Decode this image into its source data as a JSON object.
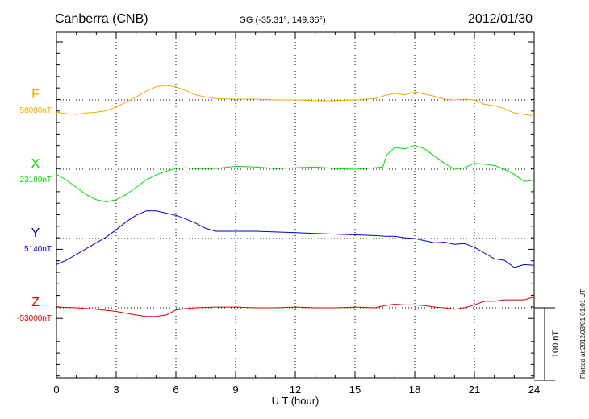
{
  "header": {
    "station": "Canberra (CNB)",
    "coords": "GG (-35.31°, 149.36°)",
    "date": "2012/01/30"
  },
  "footer_note": "Plotted at 2012/03/01 01:01 UT",
  "chart_data": {
    "type": "line",
    "xlabel": "U T (hour)",
    "xlim": [
      0,
      24
    ],
    "xticks": [
      0,
      3,
      6,
      9,
      12,
      15,
      18,
      21,
      24
    ],
    "grid": true,
    "scale_bar": {
      "label": "100 nT",
      "value_nT": 100
    },
    "series": [
      {
        "name": "F",
        "baseline_label": "58080nT",
        "baseline_nT": 58080,
        "color": "#f0a800",
        "points": [
          [
            0,
            58063
          ],
          [
            0.5,
            58061
          ],
          [
            1,
            58060
          ],
          [
            1.5,
            58062
          ],
          [
            2,
            58063
          ],
          [
            2.5,
            58065
          ],
          [
            3,
            58070
          ],
          [
            3.5,
            58077
          ],
          [
            4,
            58084
          ],
          [
            4.5,
            58092
          ],
          [
            5,
            58098
          ],
          [
            5.5,
            58100
          ],
          [
            6,
            58098
          ],
          [
            6.5,
            58093
          ],
          [
            7,
            58087
          ],
          [
            7.5,
            58084
          ],
          [
            8,
            58082
          ],
          [
            9,
            58081
          ],
          [
            10,
            58081
          ],
          [
            11,
            58080
          ],
          [
            12,
            58080
          ],
          [
            13,
            58079
          ],
          [
            14,
            58079
          ],
          [
            15,
            58080
          ],
          [
            16,
            58082
          ],
          [
            16.5,
            58086
          ],
          [
            17,
            58089
          ],
          [
            17.5,
            58087
          ],
          [
            18,
            58091
          ],
          [
            18.5,
            58088
          ],
          [
            19,
            58085
          ],
          [
            19.5,
            58081
          ],
          [
            20,
            58080
          ],
          [
            20.5,
            58081
          ],
          [
            21,
            58080
          ],
          [
            21.5,
            58074
          ],
          [
            22,
            58072
          ],
          [
            22.5,
            58068
          ],
          [
            23,
            58062
          ],
          [
            23.5,
            58060
          ],
          [
            24,
            58058
          ]
        ]
      },
      {
        "name": "X",
        "baseline_label": "23180nT",
        "baseline_nT": 23180,
        "color": "#00dd00",
        "points": [
          [
            0,
            23173
          ],
          [
            0.5,
            23165
          ],
          [
            1,
            23155
          ],
          [
            1.5,
            23145
          ],
          [
            2,
            23138
          ],
          [
            2.5,
            23135
          ],
          [
            3,
            23138
          ],
          [
            3.5,
            23145
          ],
          [
            4,
            23155
          ],
          [
            4.5,
            23165
          ],
          [
            5,
            23172
          ],
          [
            5.5,
            23177
          ],
          [
            6,
            23181
          ],
          [
            6.5,
            23182
          ],
          [
            7,
            23181
          ],
          [
            8,
            23181
          ],
          [
            9,
            23184
          ],
          [
            10,
            23183
          ],
          [
            11,
            23181
          ],
          [
            12,
            23182
          ],
          [
            13,
            23183
          ],
          [
            14,
            23181
          ],
          [
            15,
            23180
          ],
          [
            16,
            23182
          ],
          [
            16.4,
            23183
          ],
          [
            16.6,
            23200
          ],
          [
            17,
            23210
          ],
          [
            17.5,
            23208
          ],
          [
            18,
            23213
          ],
          [
            18.5,
            23208
          ],
          [
            19,
            23198
          ],
          [
            19.5,
            23188
          ],
          [
            20,
            23180
          ],
          [
            20.5,
            23182
          ],
          [
            21,
            23188
          ],
          [
            21.5,
            23187
          ],
          [
            22,
            23185
          ],
          [
            22.5,
            23180
          ],
          [
            23,
            23173
          ],
          [
            23.5,
            23163
          ],
          [
            24,
            23165
          ]
        ]
      },
      {
        "name": "Y",
        "baseline_label": "5140nT",
        "baseline_nT": 5140,
        "color": "#0000cc",
        "points": [
          [
            0,
            5104
          ],
          [
            0.5,
            5110
          ],
          [
            1,
            5118
          ],
          [
            1.5,
            5126
          ],
          [
            2,
            5134
          ],
          [
            2.5,
            5142
          ],
          [
            3,
            5152
          ],
          [
            3.5,
            5163
          ],
          [
            4,
            5172
          ],
          [
            4.5,
            5178
          ],
          [
            5,
            5178
          ],
          [
            5.5,
            5175
          ],
          [
            6,
            5172
          ],
          [
            6.5,
            5167
          ],
          [
            7,
            5161
          ],
          [
            7.5,
            5154
          ],
          [
            8,
            5150
          ],
          [
            9,
            5150
          ],
          [
            10,
            5150
          ],
          [
            11,
            5149
          ],
          [
            12,
            5148
          ],
          [
            13,
            5147
          ],
          [
            14,
            5146
          ],
          [
            15,
            5145
          ],
          [
            16,
            5144
          ],
          [
            16.5,
            5143
          ],
          [
            17,
            5143
          ],
          [
            17.5,
            5141
          ],
          [
            18,
            5140
          ],
          [
            18.5,
            5137
          ],
          [
            19,
            5134
          ],
          [
            19.5,
            5135
          ],
          [
            20,
            5132
          ],
          [
            20.5,
            5133
          ],
          [
            21,
            5128
          ],
          [
            21.5,
            5120
          ],
          [
            22,
            5112
          ],
          [
            22.5,
            5110
          ],
          [
            23,
            5100
          ],
          [
            23.5,
            5104
          ],
          [
            24,
            5103
          ]
        ]
      },
      {
        "name": "Z",
        "baseline_label": "-53000nT",
        "baseline_nT": -53000,
        "color": "#dd0000",
        "points": [
          [
            0,
            -52999
          ],
          [
            1,
            -53000
          ],
          [
            2,
            -53002
          ],
          [
            3,
            -53005
          ],
          [
            4,
            -53010
          ],
          [
            4.5,
            -53012
          ],
          [
            5,
            -53012
          ],
          [
            5.5,
            -53010
          ],
          [
            6,
            -53003
          ],
          [
            6.5,
            -53001
          ],
          [
            7,
            -53000
          ],
          [
            8,
            -52999
          ],
          [
            9,
            -52999
          ],
          [
            10,
            -53000
          ],
          [
            11,
            -53000
          ],
          [
            12,
            -52999
          ],
          [
            13,
            -53000
          ],
          [
            14,
            -53000
          ],
          [
            15,
            -52999
          ],
          [
            16,
            -53000
          ],
          [
            16.5,
            -52997
          ],
          [
            17,
            -52995
          ],
          [
            17.5,
            -52996
          ],
          [
            18,
            -52996
          ],
          [
            18.5,
            -52997
          ],
          [
            19,
            -52999
          ],
          [
            19.5,
            -53000
          ],
          [
            20,
            -53002
          ],
          [
            20.5,
            -53000
          ],
          [
            21,
            -52996
          ],
          [
            21.5,
            -52991
          ],
          [
            22,
            -52991
          ],
          [
            22.5,
            -52989
          ],
          [
            23,
            -52989
          ],
          [
            23.5,
            -52989
          ],
          [
            24,
            -52985
          ]
        ]
      }
    ]
  }
}
